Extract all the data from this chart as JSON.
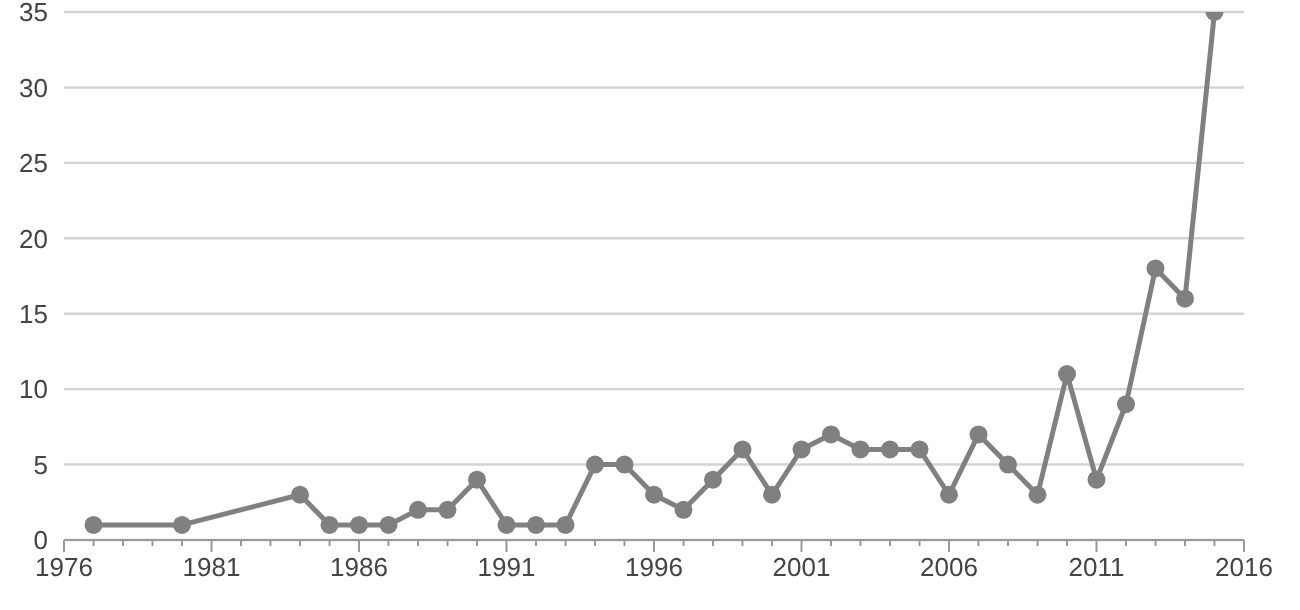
{
  "chart_data": {
    "type": "line",
    "x": [
      1977,
      1980,
      1984,
      1985,
      1986,
      1987,
      1988,
      1989,
      1990,
      1991,
      1992,
      1993,
      1994,
      1995,
      1996,
      1997,
      1998,
      1999,
      2000,
      2001,
      2002,
      2003,
      2004,
      2005,
      2006,
      2007,
      2008,
      2009,
      2010,
      2011,
      2012,
      2013,
      2014,
      2015
    ],
    "series": [
      {
        "color": "#808080",
        "values": [
          1,
          1,
          3,
          1,
          1,
          1,
          2,
          2,
          4,
          1,
          1,
          1,
          5,
          5,
          3,
          2,
          4,
          6,
          3,
          6,
          7,
          6,
          6,
          6,
          3,
          7,
          5,
          3,
          11,
          4,
          9,
          18,
          16,
          35
        ]
      }
    ],
    "xlim": [
      1976,
      2016
    ],
    "xticks": [
      1976,
      {
        "value": 1977,
        "label": null
      },
      {
        "value": 1978,
        "label": null
      },
      {
        "value": 1979,
        "label": null
      },
      {
        "value": 1980,
        "label": null
      },
      1981,
      {
        "value": 1982,
        "label": null
      },
      {
        "value": 1983,
        "label": null
      },
      {
        "value": 1984,
        "label": null
      },
      {
        "value": 1985,
        "label": null
      },
      1986,
      {
        "value": 1987,
        "label": null
      },
      {
        "value": 1988,
        "label": null
      },
      {
        "value": 1989,
        "label": null
      },
      {
        "value": 1990,
        "label": null
      },
      1991,
      {
        "value": 1992,
        "label": null
      },
      {
        "value": 1993,
        "label": null
      },
      {
        "value": 1994,
        "label": null
      },
      {
        "value": 1995,
        "label": null
      },
      1996,
      {
        "value": 1997,
        "label": null
      },
      {
        "value": 1998,
        "label": null
      },
      {
        "value": 1999,
        "label": null
      },
      {
        "value": 2000,
        "label": null
      },
      2001,
      {
        "value": 2002,
        "label": null
      },
      {
        "value": 2003,
        "label": null
      },
      {
        "value": 2004,
        "label": null
      },
      {
        "value": 2005,
        "label": null
      },
      2006,
      {
        "value": 2007,
        "label": null
      },
      {
        "value": 2008,
        "label": null
      },
      {
        "value": 2009,
        "label": null
      },
      {
        "value": 2010,
        "label": null
      },
      2011,
      {
        "value": 2012,
        "label": null
      },
      {
        "value": 2013,
        "label": null
      },
      {
        "value": 2014,
        "label": null
      },
      {
        "value": 2015,
        "label": null
      },
      2016
    ],
    "ylim": [
      0,
      35
    ],
    "yticks": [
      0,
      5,
      10,
      15,
      20,
      25,
      30,
      35
    ],
    "grid": "y",
    "legend": false,
    "marker": "circle",
    "line_style": "solid"
  }
}
